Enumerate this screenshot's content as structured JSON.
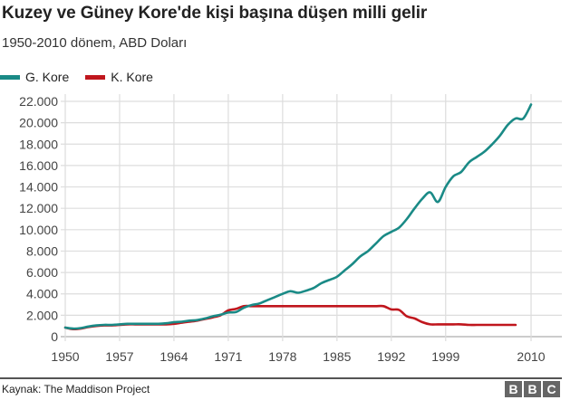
{
  "header": {
    "title": "Kuzey ve Güney Kore'de kişi başına düşen milli gelir",
    "subtitle": "1950-2010 dönem, ABD Doları"
  },
  "legend": [
    {
      "label": "G. Kore",
      "color": "#1a8a86"
    },
    {
      "label": "K. Kore",
      "color": "#c0161d"
    }
  ],
  "footer": {
    "source": "Kaynak: The Maddison Project",
    "logo_letters": [
      "B",
      "B",
      "C"
    ]
  },
  "chart_data": {
    "type": "line",
    "title": "Kuzey ve Güney Kore'de kişi başına düşen milli gelir",
    "subtitle": "1950-2010 dönem, ABD Doları",
    "xlabel": "",
    "ylabel": "",
    "xlim": [
      1950,
      2010
    ],
    "ylim": [
      0,
      22000
    ],
    "grid": true,
    "legend_position": "top-left",
    "x_ticks": [
      "1950",
      "1957",
      "1964",
      "1971",
      "1978",
      "1985",
      "1992",
      "1999",
      "2010"
    ],
    "x_tick_values": [
      1950,
      1957,
      1964,
      1971,
      1978,
      1985,
      1992,
      1999,
      2010
    ],
    "y_ticks": [
      "0",
      "2.000",
      "4.000",
      "6.000",
      "8.000",
      "10.000",
      "12.000",
      "14.000",
      "16.000",
      "18.000",
      "20.000",
      "22.000"
    ],
    "y_tick_values": [
      0,
      2000,
      4000,
      6000,
      8000,
      10000,
      12000,
      14000,
      16000,
      18000,
      20000,
      22000
    ],
    "series": [
      {
        "name": "G. Kore",
        "color": "#1a8a86",
        "x": [
          1950,
          1951,
          1952,
          1953,
          1954,
          1955,
          1956,
          1957,
          1958,
          1959,
          1960,
          1961,
          1962,
          1963,
          1964,
          1965,
          1966,
          1967,
          1968,
          1969,
          1970,
          1971,
          1972,
          1973,
          1974,
          1975,
          1976,
          1977,
          1978,
          1979,
          1980,
          1981,
          1982,
          1983,
          1984,
          1985,
          1986,
          1987,
          1988,
          1989,
          1990,
          1991,
          1992,
          1993,
          1994,
          1995,
          1996,
          1997,
          1998,
          1999,
          2000,
          2001,
          2002,
          2003,
          2004,
          2005,
          2006,
          2007,
          2008,
          2009,
          2010
        ],
        "values": [
          850,
          750,
          800,
          950,
          1050,
          1100,
          1100,
          1150,
          1200,
          1200,
          1200,
          1200,
          1200,
          1250,
          1350,
          1400,
          1500,
          1550,
          1700,
          1900,
          2050,
          2250,
          2300,
          2700,
          2950,
          3100,
          3400,
          3700,
          4000,
          4250,
          4100,
          4300,
          4550,
          5000,
          5300,
          5600,
          6200,
          6800,
          7500,
          8000,
          8700,
          9400,
          9800,
          10200,
          11000,
          12000,
          12900,
          13500,
          12600,
          14000,
          15000,
          15400,
          16300,
          16800,
          17300,
          18000,
          18800,
          19800,
          20400,
          20400,
          21700
        ]
      },
      {
        "name": "K. Kore",
        "color": "#c0161d",
        "x": [
          1950,
          1951,
          1952,
          1953,
          1954,
          1955,
          1956,
          1957,
          1958,
          1959,
          1960,
          1961,
          1962,
          1963,
          1964,
          1965,
          1966,
          1967,
          1968,
          1969,
          1970,
          1971,
          1972,
          1973,
          1974,
          1975,
          1976,
          1977,
          1978,
          1979,
          1980,
          1981,
          1982,
          1983,
          1984,
          1985,
          1986,
          1987,
          1988,
          1989,
          1990,
          1991,
          1992,
          1993,
          1994,
          1995,
          1996,
          1997,
          1998,
          1999,
          2000,
          2001,
          2002,
          2003,
          2004,
          2005,
          2006,
          2007,
          2008
        ],
        "values": [
          850,
          700,
          750,
          900,
          1000,
          1050,
          1050,
          1100,
          1150,
          1150,
          1150,
          1150,
          1150,
          1150,
          1200,
          1300,
          1400,
          1500,
          1650,
          1800,
          2000,
          2450,
          2600,
          2850,
          2850,
          2850,
          2850,
          2850,
          2850,
          2850,
          2850,
          2850,
          2850,
          2850,
          2850,
          2850,
          2850,
          2850,
          2850,
          2850,
          2850,
          2850,
          2550,
          2500,
          1900,
          1700,
          1350,
          1150,
          1150,
          1150,
          1150,
          1150,
          1100,
          1100,
          1100,
          1100,
          1100,
          1100,
          1100
        ]
      }
    ]
  }
}
